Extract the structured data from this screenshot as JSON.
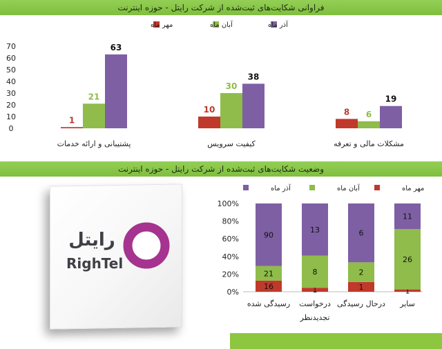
{
  "header_top": {
    "title": "فراوانی شکایت‌های ثبت‌شده از شرکت رایتل - حوزه اینترنت"
  },
  "header_mid": {
    "title": "وضعیت شکایت‌های ثبت‌شده از شرکت رایتل - حوزه اینترنت"
  },
  "logo": {
    "persian": "رایتل",
    "latin": "RighTel",
    "ring_color": "#a5338f"
  },
  "colors": {
    "mehr": "#c0392b",
    "aban": "#8fbc4a",
    "azar": "#7e5fa3",
    "header": "#8dc63f"
  },
  "chart_data": [
    {
      "type": "bar",
      "categories": [
        "پشتیبانی و ارائه خدمات",
        "کیفیت سرویس",
        "مشکلات مالی و تعرفه"
      ],
      "series": [
        {
          "name": "مهر ماه",
          "values": [
            1,
            10,
            8
          ],
          "color": "#c0392b"
        },
        {
          "name": "آبان ماه",
          "values": [
            21,
            30,
            6
          ],
          "color": "#8fbc4a"
        },
        {
          "name": "آذر ماه",
          "values": [
            63,
            38,
            19
          ],
          "color": "#7e5fa3"
        }
      ],
      "yticks": [
        "0",
        "10",
        "20",
        "30",
        "40",
        "50",
        "60",
        "70"
      ],
      "ylim": [
        0,
        70
      ],
      "legend": "top",
      "grid": false
    },
    {
      "type": "stacked-bar-100",
      "categories": [
        "رسیدگی شده",
        "درخواست تجدیدنظر",
        "درحال رسیدگی",
        "سایر"
      ],
      "series": [
        {
          "name": "مهر ماه",
          "values": [
            16,
            1,
            1,
            1
          ],
          "color": "#c0392b"
        },
        {
          "name": "آبان ماه",
          "values": [
            21,
            8,
            2,
            26
          ],
          "color": "#8fbc4a"
        },
        {
          "name": "آذر ماه",
          "values": [
            90,
            13,
            6,
            11
          ],
          "color": "#7e5fa3"
        }
      ],
      "yticks": [
        "0%",
        "20%",
        "40%",
        "60%",
        "80%",
        "100%"
      ],
      "legend": "top",
      "grid": false
    }
  ]
}
